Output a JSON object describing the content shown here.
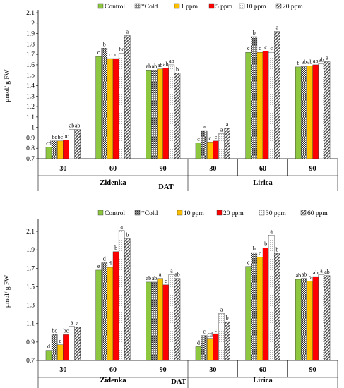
{
  "colors": {
    "control": "#8dc63f",
    "cold": "#3a3a3a",
    "t1": "#ffc000",
    "t2": "#ff0000",
    "t3": "#ffffff",
    "t4": "#6d6d6d"
  },
  "chart_data": [
    {
      "type": "bar",
      "ylabel": "μmol/ g FW",
      "xlabel": "DAT",
      "ylim": [
        0.7,
        2.1
      ],
      "yticks": [
        "0.7",
        "0.8",
        "0.9",
        "1",
        "1.1",
        "1.2",
        "1.3",
        "1.4",
        "1.5",
        "1.6",
        "1.7",
        "1.8",
        "1.9",
        "2",
        "2.1"
      ],
      "ytick_values": [
        0.7,
        0.8,
        0.9,
        1.0,
        1.1,
        1.2,
        1.3,
        1.4,
        1.5,
        1.6,
        1.7,
        1.8,
        1.9,
        2.0,
        2.1
      ],
      "legend": [
        "Control",
        "*Cold",
        "1 ppm",
        "5 ppm",
        "10 ppm",
        "20 ppm"
      ],
      "legend_position": "top",
      "cultivars": [
        "Zidenka",
        "Lirica"
      ],
      "categories": [
        "30",
        "60",
        "90",
        "30",
        "60",
        "90"
      ],
      "series": [
        {
          "name": "Control",
          "values": [
            0.81,
            1.68,
            1.55,
            0.85,
            1.72,
            1.58
          ]
        },
        {
          "name": "*Cold",
          "values": [
            0.87,
            1.76,
            1.55,
            0.97,
            1.87,
            1.59
          ]
        },
        {
          "name": "1 ppm",
          "values": [
            0.87,
            1.66,
            1.56,
            0.86,
            1.72,
            1.59
          ]
        },
        {
          "name": "5 ppm",
          "values": [
            0.88,
            1.66,
            1.57,
            0.87,
            1.73,
            1.6
          ]
        },
        {
          "name": "10 ppm",
          "values": [
            0.98,
            1.71,
            1.6,
            0.94,
            1.72,
            1.61
          ]
        },
        {
          "name": "20 ppm",
          "values": [
            0.98,
            1.88,
            1.52,
            0.99,
            1.92,
            1.63
          ]
        }
      ],
      "letters": [
        [
          "cd",
          "c",
          "ab",
          "c",
          "c",
          "b"
        ],
        [
          "bc",
          "b",
          "ab",
          "a",
          "b",
          "ab"
        ],
        [
          "bc",
          "c",
          "ab",
          "c",
          "c",
          "ab"
        ],
        [
          "bc",
          "c",
          "ab",
          "c",
          "c",
          "ab"
        ],
        [
          "ab",
          "bc",
          "ab",
          "a",
          "c",
          "ab"
        ],
        [
          "ab",
          "a",
          "b",
          "a",
          "a",
          "a"
        ]
      ]
    },
    {
      "type": "bar",
      "ylabel": "μmol/ g FW",
      "xlabel": "DAT",
      "ylim": [
        0.7,
        2.2
      ],
      "yticks": [
        "0.7",
        "0.9",
        "1.1",
        "1.3",
        "1.5",
        "1.7",
        "1.9",
        "2.1"
      ],
      "ytick_values": [
        0.7,
        0.9,
        1.1,
        1.3,
        1.5,
        1.7,
        1.9,
        2.1
      ],
      "legend": [
        "Control",
        "*Cold",
        "10 ppm",
        "20 ppm",
        "30 ppm",
        "60 ppm"
      ],
      "legend_position": "top",
      "cultivars": [
        "Zidenka",
        "Lirica"
      ],
      "categories": [
        "30",
        "60",
        "90",
        "30",
        "60",
        "90"
      ],
      "series": [
        {
          "name": "Control",
          "values": [
            0.81,
            1.68,
            1.55,
            0.85,
            1.72,
            1.58
          ]
        },
        {
          "name": "*Cold",
          "values": [
            0.98,
            1.76,
            1.55,
            0.97,
            1.87,
            1.59
          ]
        },
        {
          "name": "10 ppm",
          "values": [
            0.87,
            1.71,
            1.59,
            0.94,
            1.82,
            1.56
          ]
        },
        {
          "name": "20 ppm",
          "values": [
            0.98,
            1.88,
            1.52,
            0.99,
            1.92,
            1.61
          ]
        },
        {
          "name": "30 ppm",
          "values": [
            1.07,
            2.11,
            1.63,
            1.21,
            2.06,
            1.63
          ]
        },
        {
          "name": "60 ppm",
          "values": [
            1.06,
            2.02,
            1.59,
            1.12,
            1.86,
            1.62
          ]
        }
      ],
      "letters": [
        [
          "d",
          "e",
          "ab",
          "d",
          "c",
          "ab"
        ],
        [
          "bc",
          "d",
          "ab",
          "c",
          "b",
          "ab"
        ],
        [
          "c",
          "d",
          "a",
          "cd",
          "c",
          "b"
        ],
        [
          "bc",
          "b",
          "c",
          "c",
          "b",
          "ab"
        ],
        [
          "a",
          "a",
          "a",
          "a",
          "a",
          "a"
        ],
        [
          "a",
          "b",
          "ab",
          "b",
          "b",
          "ab"
        ]
      ]
    }
  ]
}
